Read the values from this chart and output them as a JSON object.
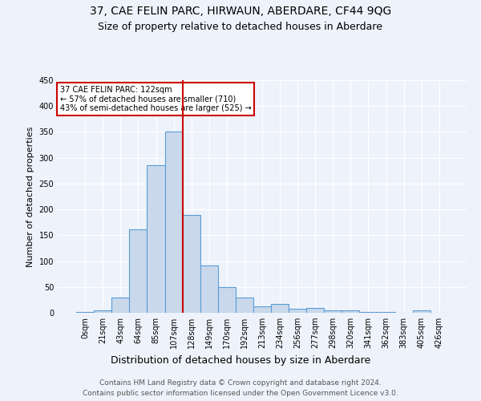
{
  "title": "37, CAE FELIN PARC, HIRWAUN, ABERDARE, CF44 9QG",
  "subtitle": "Size of property relative to detached houses in Aberdare",
  "xlabel": "Distribution of detached houses by size in Aberdare",
  "ylabel": "Number of detached properties",
  "bar_labels": [
    "0sqm",
    "21sqm",
    "43sqm",
    "64sqm",
    "85sqm",
    "107sqm",
    "128sqm",
    "149sqm",
    "170sqm",
    "192sqm",
    "213sqm",
    "234sqm",
    "256sqm",
    "277sqm",
    "298sqm",
    "320sqm",
    "341sqm",
    "362sqm",
    "383sqm",
    "405sqm",
    "426sqm"
  ],
  "bar_values": [
    2,
    4,
    30,
    161,
    285,
    350,
    190,
    91,
    50,
    30,
    13,
    17,
    7,
    10,
    4,
    5,
    2,
    1,
    0,
    5,
    0
  ],
  "bar_color": "#c9d9eb",
  "bar_edge_color": "#5b9bd5",
  "background_color": "#eef3fb",
  "grid_color": "#ffffff",
  "vline_x_idx": 6,
  "vline_color": "#cc0000",
  "annotation_text": "37 CAE FELIN PARC: 122sqm\n← 57% of detached houses are smaller (710)\n43% of semi-detached houses are larger (525) →",
  "annotation_box_color": "#ffffff",
  "annotation_box_edge_color": "#cc0000",
  "ylim": [
    0,
    450
  ],
  "yticks": [
    0,
    50,
    100,
    150,
    200,
    250,
    300,
    350,
    400,
    450
  ],
  "footer_line1": "Contains HM Land Registry data © Crown copyright and database right 2024.",
  "footer_line2": "Contains public sector information licensed under the Open Government Licence v3.0.",
  "title_fontsize": 10,
  "subtitle_fontsize": 9,
  "xlabel_fontsize": 9,
  "ylabel_fontsize": 8,
  "tick_fontsize": 7,
  "annotation_fontsize": 7,
  "footer_fontsize": 6.5
}
